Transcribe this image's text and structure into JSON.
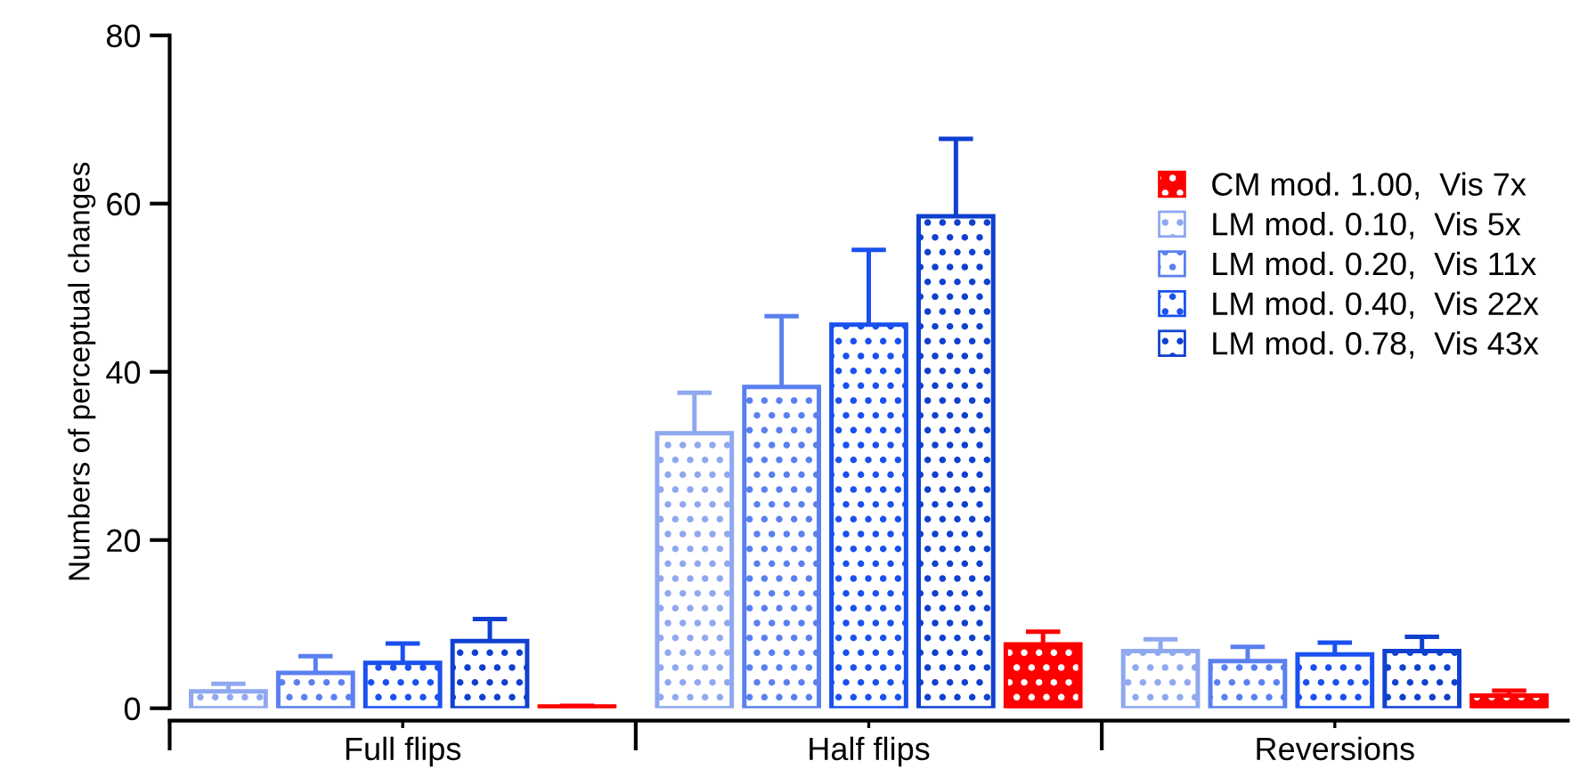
{
  "chart_data": {
    "type": "bar",
    "ylabel": "Numbers of perceptual changes",
    "categories": [
      "Full flips",
      "Half flips",
      "Reversions"
    ],
    "series": [
      {
        "name": "CM mod. 1.00,  Vis 7x",
        "color": "#ff0000",
        "values": [
          0.2,
          7.6,
          1.5
        ],
        "errors": [
          [
            0.2,
            0.3
          ],
          [
            7.6,
            9.1
          ],
          [
            1.5,
            2.1
          ]
        ]
      },
      {
        "name": "LM mod. 0.10,  Vis 5x",
        "color": "#8fa8f0",
        "values": [
          2.0,
          32.7,
          6.8
        ],
        "errors": [
          [
            2.0,
            2.9
          ],
          [
            32.7,
            37.5
          ],
          [
            6.8,
            8.2
          ]
        ]
      },
      {
        "name": "LM mod. 0.20,  Vis 11x",
        "color": "#5a80f0",
        "values": [
          4.2,
          38.2,
          5.6
        ],
        "errors": [
          [
            4.2,
            6.2
          ],
          [
            38.2,
            46.6
          ],
          [
            5.6,
            7.3
          ]
        ]
      },
      {
        "name": "LM mod. 0.40,  Vis 22x",
        "color": "#1a50f0",
        "values": [
          5.4,
          45.6,
          6.4
        ],
        "errors": [
          [
            5.4,
            7.7
          ],
          [
            45.6,
            54.5
          ],
          [
            6.4,
            7.8
          ]
        ]
      },
      {
        "name": "LM mod. 0.78,  Vis 43x",
        "color": "#1040d0",
        "values": [
          8.0,
          58.5,
          6.8
        ],
        "errors": [
          [
            8.0,
            10.6
          ],
          [
            58.5,
            67.7
          ],
          [
            6.8,
            8.5
          ]
        ]
      }
    ],
    "ylim": [
      0,
      80
    ],
    "yticks": [
      0,
      20,
      40,
      60,
      80
    ],
    "grid": false,
    "legend": "top right"
  }
}
